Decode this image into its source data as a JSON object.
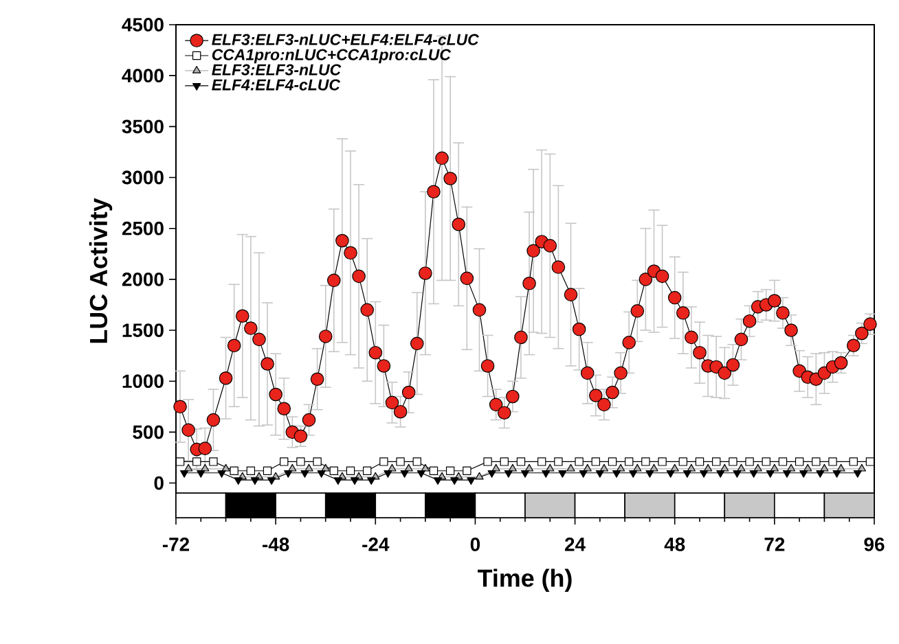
{
  "chart_data": {
    "type": "line",
    "xlabel": "Time (h)",
    "ylabel": "LUC Activity",
    "xlim": [
      -72,
      96
    ],
    "xticks": [
      -72,
      -48,
      -24,
      0,
      24,
      48,
      72,
      96
    ],
    "ylim": [
      -340,
      4500
    ],
    "yticks": [
      0,
      500,
      1000,
      1500,
      2000,
      2500,
      3000,
      3500,
      4000,
      4500
    ],
    "legend": "top left",
    "x": [
      -71,
      -69,
      -67,
      -65,
      -63,
      -60,
      -58,
      -56,
      -54,
      -52,
      -50,
      -48,
      -46,
      -44,
      -42,
      -40,
      -38,
      -36,
      -34,
      -32,
      -30,
      -28,
      -26,
      -24,
      -22,
      -20,
      -18,
      -16,
      -14,
      -12,
      -10,
      -8,
      -6,
      -4,
      -2,
      1,
      3,
      5,
      7,
      9,
      11,
      13,
      14,
      16,
      18,
      20,
      23,
      25,
      27,
      29,
      31,
      33,
      35,
      37,
      39,
      41,
      43,
      45,
      48,
      50,
      52,
      54,
      56,
      58,
      60,
      62,
      64,
      66,
      68,
      70,
      72,
      74,
      76,
      78,
      80,
      82,
      84,
      86,
      88,
      91,
      93,
      95
    ],
    "series": [
      {
        "name": "ELF3:ELF3-nLUC+ELF4:ELF4-cLUC",
        "color": "#e8241c",
        "marker": "circle",
        "values": [
          750,
          520,
          330,
          340,
          620,
          1030,
          1350,
          1640,
          1520,
          1410,
          1170,
          870,
          730,
          500,
          460,
          620,
          1020,
          1440,
          1990,
          2380,
          2260,
          2030,
          1700,
          1280,
          1150,
          790,
          700,
          890,
          1370,
          2060,
          2860,
          3190,
          2990,
          2540,
          2010,
          1700,
          1150,
          770,
          690,
          850,
          1430,
          1960,
          2280,
          2370,
          2330,
          2120,
          1850,
          1510,
          1080,
          860,
          770,
          890,
          1080,
          1380,
          1690,
          2000,
          2080,
          2030,
          1820,
          1670,
          1430,
          1280,
          1150,
          1140,
          1080,
          1160,
          1410,
          1590,
          1730,
          1750,
          1790,
          1670,
          1500,
          1100,
          1040,
          1020,
          1080,
          1140,
          1180,
          1350,
          1470,
          1560
        ],
        "errors": [
          350,
          300,
          200,
          200,
          300,
          400,
          600,
          800,
          900,
          850,
          600,
          400,
          300,
          150,
          100,
          150,
          300,
          500,
          700,
          1000,
          1000,
          900,
          700,
          500,
          400,
          200,
          150,
          200,
          500,
          800,
          1100,
          1200,
          1000,
          800,
          700,
          600,
          300,
          150,
          150,
          150,
          400,
          700,
          800,
          900,
          900,
          800,
          700,
          400,
          300,
          200,
          150,
          150,
          200,
          300,
          300,
          500,
          600,
          500,
          400,
          400,
          300,
          300,
          300,
          300,
          250,
          200,
          200,
          150,
          150,
          150,
          200,
          150,
          150,
          200,
          200,
          250,
          200,
          150,
          100,
          100,
          100,
          100
        ]
      },
      {
        "name": "CCA1pro:nLUC+CCA1pro:cLUC",
        "color": "#ffffff",
        "marker": "square",
        "x": [
          -71,
          -67,
          -63,
          -58,
          -54,
          -50,
          -46,
          -42,
          -38,
          -34,
          -30,
          -26,
          -22,
          -18,
          -14,
          -10,
          -6,
          -2,
          3,
          7,
          11,
          16,
          20,
          25,
          29,
          33,
          37,
          41,
          45,
          50,
          54,
          58,
          62,
          66,
          70,
          74,
          78,
          82,
          86,
          91,
          95
        ],
        "values": [
          210,
          210,
          210,
          120,
          120,
          120,
          210,
          210,
          210,
          120,
          120,
          120,
          210,
          210,
          210,
          120,
          120,
          120,
          210,
          210,
          210,
          210,
          210,
          210,
          210,
          210,
          210,
          210,
          210,
          210,
          210,
          210,
          210,
          210,
          210,
          210,
          210,
          210,
          210,
          210,
          210
        ]
      },
      {
        "name": "ELF3:ELF3-nLUC",
        "color": "#b0b0b0",
        "marker": "triangle",
        "x": [
          -69,
          -65,
          -60,
          -56,
          -52,
          -48,
          -44,
          -40,
          -36,
          -32,
          -28,
          -24,
          -20,
          -16,
          -12,
          -8,
          -4,
          1,
          5,
          9,
          13,
          18,
          23,
          27,
          31,
          35,
          39,
          43,
          48,
          52,
          56,
          60,
          64,
          68,
          72,
          76,
          80,
          84,
          88,
          93
        ],
        "values": [
          140,
          140,
          140,
          60,
          60,
          60,
          140,
          140,
          140,
          60,
          60,
          60,
          140,
          140,
          140,
          60,
          60,
          60,
          140,
          140,
          140,
          140,
          140,
          140,
          140,
          140,
          140,
          140,
          140,
          140,
          140,
          140,
          140,
          140,
          140,
          140,
          140,
          140,
          140,
          140
        ]
      },
      {
        "name": "ELF4:ELF4-cLUC",
        "color": "#000000",
        "marker": "triangle_down",
        "x": [
          -70,
          -66,
          -61,
          -57,
          -53,
          -49,
          -45,
          -41,
          -37,
          -33,
          -29,
          -25,
          -21,
          -17,
          -13,
          -9,
          -5,
          -1,
          4,
          8,
          12,
          17,
          21,
          26,
          30,
          34,
          38,
          42,
          47,
          51,
          55,
          59,
          63,
          67,
          71,
          75,
          79,
          83,
          87,
          92
        ],
        "values": [
          100,
          100,
          100,
          30,
          30,
          30,
          100,
          100,
          100,
          30,
          30,
          30,
          100,
          100,
          100,
          30,
          30,
          30,
          100,
          100,
          100,
          100,
          100,
          100,
          100,
          100,
          100,
          100,
          100,
          100,
          100,
          100,
          100,
          100,
          100,
          100,
          100,
          100,
          100,
          100
        ]
      }
    ],
    "bands": [
      {
        "axis": "x",
        "from": -72,
        "to": -60,
        "color": "#ffffff"
      },
      {
        "axis": "x",
        "from": -60,
        "to": -48,
        "color": "#000000"
      },
      {
        "axis": "x",
        "from": -48,
        "to": -36,
        "color": "#ffffff"
      },
      {
        "axis": "x",
        "from": -36,
        "to": -24,
        "color": "#000000"
      },
      {
        "axis": "x",
        "from": -24,
        "to": -12,
        "color": "#ffffff"
      },
      {
        "axis": "x",
        "from": -12,
        "to": 0,
        "color": "#000000"
      },
      {
        "axis": "x",
        "from": 0,
        "to": 12,
        "color": "#ffffff"
      },
      {
        "axis": "x",
        "from": 12,
        "to": 24,
        "color": "#c8c8c8"
      },
      {
        "axis": "x",
        "from": 24,
        "to": 36,
        "color": "#ffffff"
      },
      {
        "axis": "x",
        "from": 36,
        "to": 48,
        "color": "#c8c8c8"
      },
      {
        "axis": "x",
        "from": 48,
        "to": 60,
        "color": "#ffffff"
      },
      {
        "axis": "x",
        "from": 60,
        "to": 72,
        "color": "#c8c8c8"
      },
      {
        "axis": "x",
        "from": 72,
        "to": 84,
        "color": "#ffffff"
      },
      {
        "axis": "x",
        "from": 84,
        "to": 96,
        "color": "#c8c8c8"
      }
    ]
  }
}
